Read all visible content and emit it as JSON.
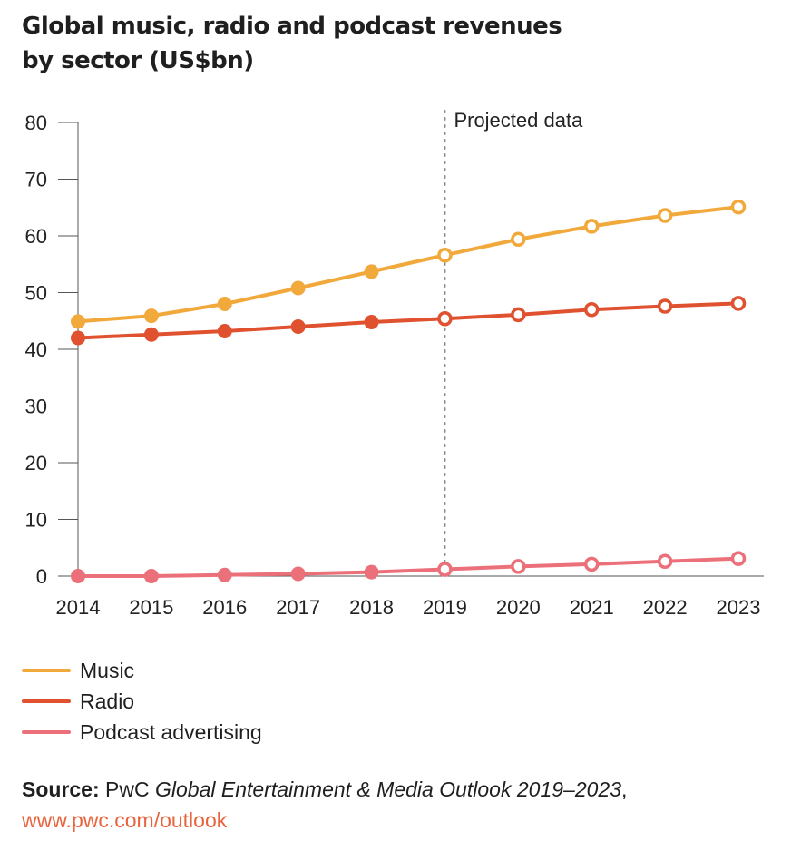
{
  "title_line1": "Global music, radio and podcast revenues",
  "title_line2": "by sector (US$bn)",
  "chart_data": {
    "type": "line",
    "title": "Global music, radio and podcast revenues by sector (US$bn)",
    "x": [
      "2014",
      "2015",
      "2016",
      "2017",
      "2018",
      "2019",
      "2020",
      "2021",
      "2022",
      "2023"
    ],
    "y_ticks": [
      "0",
      "10",
      "20",
      "30",
      "40",
      "50",
      "60",
      "70",
      "80"
    ],
    "ylim": [
      0,
      80
    ],
    "grid": false,
    "legend_position": "bottom",
    "projection_start": "2019",
    "projection_label": "Projected data",
    "series": [
      {
        "name": "Music",
        "color": "#f2a93b",
        "values": [
          44.9,
          45.9,
          48.0,
          50.8,
          53.7,
          56.6,
          59.4,
          61.7,
          63.6,
          65.1
        ]
      },
      {
        "name": "Radio",
        "color": "#e0512f",
        "values": [
          42.0,
          42.6,
          43.2,
          44.0,
          44.8,
          45.4,
          46.1,
          47.0,
          47.6,
          48.1
        ]
      },
      {
        "name": "Podcast advertising",
        "color": "#eb7079",
        "values": [
          0.0,
          0.0,
          0.2,
          0.4,
          0.7,
          1.2,
          1.7,
          2.1,
          2.6,
          3.1
        ]
      }
    ]
  },
  "legend": [
    {
      "label": "Music",
      "color": "#f2a93b"
    },
    {
      "label": "Radio",
      "color": "#e0512f"
    },
    {
      "label": "Podcast advertising",
      "color": "#eb7079"
    }
  ],
  "source": {
    "label": "Source:",
    "publisher": " PwC ",
    "title": "Global Entertainment & Media Outlook 2019–2023",
    "comma": ",",
    "url": "www.pwc.com/outlook"
  }
}
